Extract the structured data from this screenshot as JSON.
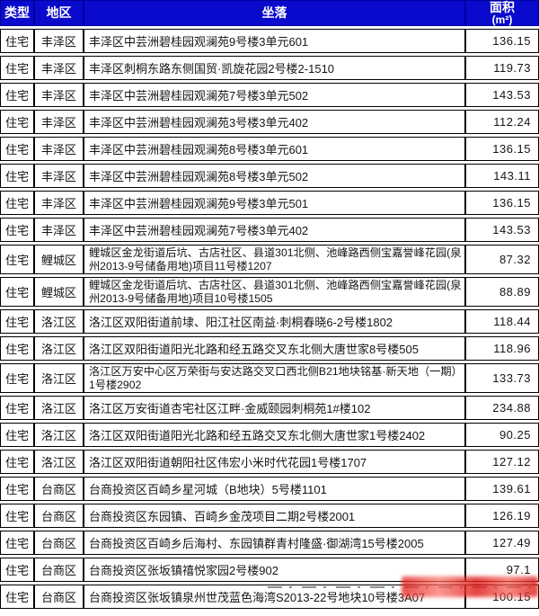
{
  "colors": {
    "header_bg": "#0a0acd",
    "header_text": "#ffffff",
    "border": "#000000",
    "body_text": "#151515",
    "watermark_red": "#e2201c"
  },
  "table": {
    "headers": {
      "type": "类型",
      "district": "地区",
      "location": "坐落",
      "area_line1": "面积",
      "area_line2": "(m²)"
    },
    "rows": [
      {
        "type": "住宅",
        "district": "丰泽区",
        "location": "丰泽区中芸洲碧桂园观澜苑9号楼3单元601",
        "area": "136.15",
        "lines": 1
      },
      {
        "type": "住宅",
        "district": "丰泽区",
        "location": "丰泽区刺桐东路东侧国贸·凯旋花园2号楼2-1510",
        "area": "119.73",
        "lines": 1
      },
      {
        "type": "住宅",
        "district": "丰泽区",
        "location": "丰泽区中芸洲碧桂园观澜苑7号楼3单元502",
        "area": "143.53",
        "lines": 1
      },
      {
        "type": "住宅",
        "district": "丰泽区",
        "location": "丰泽区中芸洲碧桂园观澜苑3号楼3单元402",
        "area": "112.24",
        "lines": 1
      },
      {
        "type": "住宅",
        "district": "丰泽区",
        "location": "丰泽区中芸洲碧桂园观澜苑8号楼3单元601",
        "area": "136.15",
        "lines": 1
      },
      {
        "type": "住宅",
        "district": "丰泽区",
        "location": "丰泽区中芸洲碧桂园观澜苑8号楼3单元502",
        "area": "143.11",
        "lines": 1
      },
      {
        "type": "住宅",
        "district": "丰泽区",
        "location": "丰泽区中芸洲碧桂园观澜苑9号楼3单元501",
        "area": "136.15",
        "lines": 1
      },
      {
        "type": "住宅",
        "district": "丰泽区",
        "location": "丰泽区中芸洲碧桂园观澜苑7号楼3单元402",
        "area": "143.53",
        "lines": 1
      },
      {
        "type": "住宅",
        "district": "鲤城区",
        "location": "鲤城区金龙街道后坑、古店社区、县道301北侧、池峰路西侧宝嘉誉峰花园(泉州2013-9号储备用地)项目11号楼1207",
        "area": "87.32",
        "lines": 2
      },
      {
        "type": "住宅",
        "district": "鲤城区",
        "location": "鲤城区金龙街道后坑、古店社区、县道301北侧、池峰路西侧宝嘉誉峰花园(泉州2013-9号储备用地)项目10号楼1505",
        "area": "88.89",
        "lines": 2
      },
      {
        "type": "住宅",
        "district": "洛江区",
        "location": "洛江区双阳街道前埭、阳江社区南益·刺桐春晓6-2号楼1802",
        "area": "118.44",
        "lines": 1
      },
      {
        "type": "住宅",
        "district": "洛江区",
        "location": "洛江区双阳街道阳光北路和经五路交叉东北侧大唐世家8号楼505",
        "area": "118.96",
        "lines": 1
      },
      {
        "type": "住宅",
        "district": "洛江区",
        "location": "洛江区万安中心区万荣街与安达路交叉口西北侧B21地块铭基·新天地（一期）1号楼2902",
        "area": "133.73",
        "lines": 2
      },
      {
        "type": "住宅",
        "district": "洛江区",
        "location": "洛江区万安街道杏宅社区江畔·金威颐园刺桐苑1#楼102",
        "area": "234.88",
        "lines": 1
      },
      {
        "type": "住宅",
        "district": "洛江区",
        "location": "洛江区双阳街道阳光北路和经五路交叉东北侧大唐世家1号楼2402",
        "area": "90.25",
        "lines": 1
      },
      {
        "type": "住宅",
        "district": "洛江区",
        "location": "洛江区双阳街道朝阳社区伟宏小米时代花园1号楼1707",
        "area": "127.12",
        "lines": 1
      },
      {
        "type": "住宅",
        "district": "台商区",
        "location": "台商投资区百崎乡星河城（B地块）5号楼1101",
        "area": "139.61",
        "lines": 1
      },
      {
        "type": "住宅",
        "district": "台商区",
        "location": "台商投资区东园镇、百崎乡金茂项目二期2号楼2001",
        "area": "126.19",
        "lines": 1
      },
      {
        "type": "住宅",
        "district": "台商区",
        "location": "台商投资区百崎乡后海村、东园镇群青村隆盛·御湖湾15号楼2005",
        "area": "127.49",
        "lines": 1
      },
      {
        "type": "住宅",
        "district": "台商区",
        "location": "台商投资区张坂镇禧悦家园2号楼902",
        "area": "97.1",
        "lines": 1
      },
      {
        "type": "住宅",
        "district": "台商区",
        "location": "台商投资区张坂镇泉州世茂蓝色海湾S2013-22号地块10号楼3A07",
        "area": "100.15",
        "lines": 1
      }
    ]
  }
}
